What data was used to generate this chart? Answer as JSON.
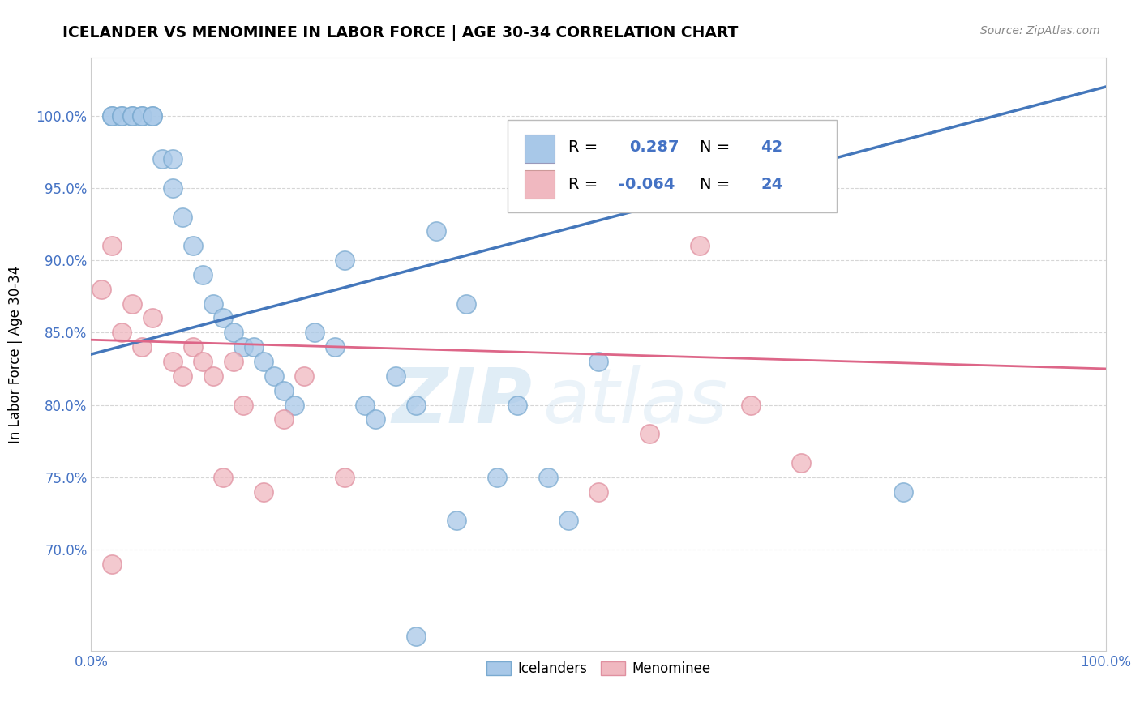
{
  "title": "ICELANDER VS MENOMINEE IN LABOR FORCE | AGE 30-34 CORRELATION CHART",
  "source": "Source: ZipAtlas.com",
  "ylabel": "In Labor Force | Age 30-34",
  "xlim": [
    0.0,
    1.0
  ],
  "ylim": [
    0.63,
    1.04
  ],
  "yticks": [
    0.7,
    0.75,
    0.8,
    0.85,
    0.9,
    0.95,
    1.0
  ],
  "ytick_labels": [
    "70.0%",
    "75.0%",
    "80.0%",
    "85.0%",
    "90.0%",
    "95.0%",
    "100.0%"
  ],
  "xtick_labels": [
    "0.0%",
    "100.0%"
  ],
  "xticks": [
    0.0,
    1.0
  ],
  "blue_R": "0.287",
  "blue_N": "42",
  "pink_R": "-0.064",
  "pink_N": "24",
  "blue_color": "#a8c8e8",
  "pink_color": "#f0b8c0",
  "blue_edge_color": "#7aaad0",
  "pink_edge_color": "#e090a0",
  "blue_line_color": "#4477bb",
  "pink_line_color": "#dd6688",
  "icelanders_x": [
    0.02,
    0.02,
    0.03,
    0.03,
    0.04,
    0.04,
    0.05,
    0.05,
    0.06,
    0.06,
    0.07,
    0.08,
    0.08,
    0.09,
    0.1,
    0.11,
    0.12,
    0.13,
    0.14,
    0.15,
    0.16,
    0.17,
    0.18,
    0.19,
    0.2,
    0.22,
    0.24,
    0.25,
    0.27,
    0.28,
    0.3,
    0.32,
    0.34,
    0.36,
    0.37,
    0.4,
    0.42,
    0.45,
    0.47,
    0.5,
    0.8,
    0.32
  ],
  "icelanders_y": [
    1.0,
    1.0,
    1.0,
    1.0,
    1.0,
    1.0,
    1.0,
    1.0,
    1.0,
    1.0,
    0.97,
    0.97,
    0.95,
    0.93,
    0.91,
    0.89,
    0.87,
    0.86,
    0.85,
    0.84,
    0.84,
    0.83,
    0.82,
    0.81,
    0.8,
    0.85,
    0.84,
    0.9,
    0.8,
    0.79,
    0.82,
    0.8,
    0.92,
    0.72,
    0.87,
    0.75,
    0.8,
    0.75,
    0.72,
    0.83,
    0.74,
    0.64
  ],
  "menominee_x": [
    0.01,
    0.02,
    0.03,
    0.04,
    0.05,
    0.06,
    0.08,
    0.09,
    0.1,
    0.11,
    0.12,
    0.13,
    0.14,
    0.15,
    0.17,
    0.19,
    0.21,
    0.25,
    0.5,
    0.55,
    0.6,
    0.65,
    0.7,
    0.02
  ],
  "menominee_y": [
    0.88,
    0.91,
    0.85,
    0.87,
    0.84,
    0.86,
    0.83,
    0.82,
    0.84,
    0.83,
    0.82,
    0.75,
    0.83,
    0.8,
    0.74,
    0.79,
    0.82,
    0.75,
    0.74,
    0.78,
    0.91,
    0.8,
    0.76,
    0.69
  ],
  "watermark_line1": "ZIP",
  "watermark_line2": "atlas",
  "blue_line_x": [
    0.0,
    1.0
  ],
  "blue_line_y": [
    0.835,
    1.02
  ],
  "pink_line_x": [
    0.0,
    1.0
  ],
  "pink_line_y": [
    0.845,
    0.825
  ]
}
